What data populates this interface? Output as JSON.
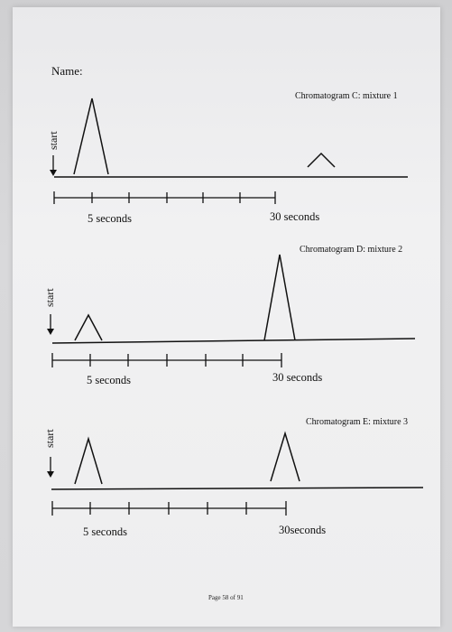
{
  "header": {
    "name_label": "Name:"
  },
  "charts": [
    {
      "title": "Chromatogram C: mixture 1",
      "start_label": "start",
      "tick_label_start": "5 seconds",
      "tick_label_end": "30 seconds"
    },
    {
      "title": "Chromatogram D: mixture 2",
      "start_label": "start",
      "tick_label_start": "5 seconds",
      "tick_label_end": "30 seconds"
    },
    {
      "title": "Chromatogram E: mixture 3",
      "start_label": "start",
      "tick_label_start": "5 seconds",
      "tick_label_end": "30seconds"
    }
  ],
  "footer": {
    "page_label": "Page 58 of 91"
  },
  "colors": {
    "ink": "#111111",
    "paper": "#f0f0f1"
  }
}
